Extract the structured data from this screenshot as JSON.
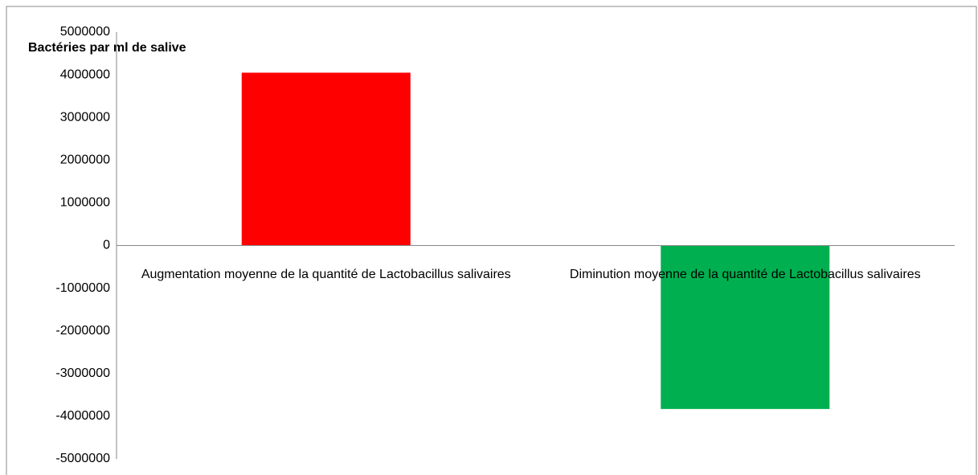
{
  "chart_data": {
    "type": "bar",
    "y_label": "Bactéries par ml de salive",
    "categories": [
      "Augmentation moyenne de la quantité de Lactobacillus salivaires",
      "Diminution moyenne de la quantité de Lactobacillus salivaires"
    ],
    "values": [
      4050000,
      -3830000
    ],
    "colors": [
      "#ff0000",
      "#00b050"
    ],
    "ylim": [
      -5000000,
      5000000
    ],
    "yticks": [
      -5000000,
      -4000000,
      -3000000,
      -2000000,
      -1000000,
      0,
      1000000,
      2000000,
      3000000,
      4000000,
      5000000
    ],
    "grid": false
  }
}
